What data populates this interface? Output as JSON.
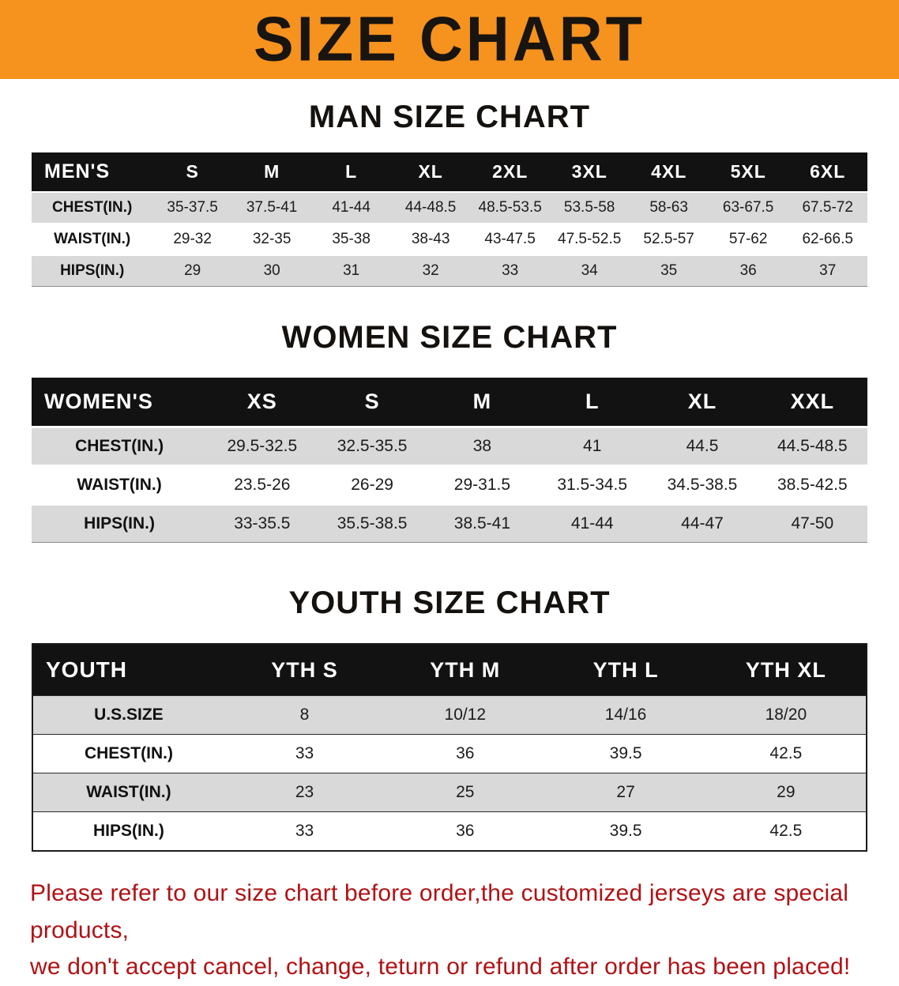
{
  "colors": {
    "banner_bg": "#f6921e",
    "header_bg": "#121212",
    "shade": "#d9d9d9",
    "footer_red": "#b01215"
  },
  "banner": {
    "title": "SIZE CHART"
  },
  "sections": [
    {
      "id": "men",
      "heading": "MAN SIZE CHART",
      "table": {
        "header": [
          "MEN'S",
          "S",
          "M",
          "L",
          "XL",
          "2XL",
          "3XL",
          "4XL",
          "5XL",
          "6XL"
        ],
        "rows": [
          {
            "label": "CHEST(IN.)",
            "values": [
              "35-37.5",
              "37.5-41",
              "41-44",
              "44-48.5",
              "48.5-53.5",
              "53.5-58",
              "58-63",
              "63-67.5",
              "67.5-72"
            ]
          },
          {
            "label": "WAIST(IN.)",
            "values": [
              "29-32",
              "32-35",
              "35-38",
              "38-43",
              "43-47.5",
              "47.5-52.5",
              "52.5-57",
              "57-62",
              "62-66.5"
            ]
          },
          {
            "label": "HIPS(IN.)",
            "values": [
              "29",
              "30",
              "31",
              "32",
              "33",
              "34",
              "35",
              "36",
              "37"
            ]
          }
        ]
      }
    },
    {
      "id": "women",
      "heading": "WOMEN SIZE CHART",
      "table": {
        "header": [
          "WOMEN'S",
          "XS",
          "S",
          "M",
          "L",
          "XL",
          "XXL"
        ],
        "rows": [
          {
            "label": "CHEST(IN.)",
            "values": [
              "29.5-32.5",
              "32.5-35.5",
              "38",
              "41",
              "44.5",
              "44.5-48.5"
            ]
          },
          {
            "label": "WAIST(IN.)",
            "values": [
              "23.5-26",
              "26-29",
              "29-31.5",
              "31.5-34.5",
              "34.5-38.5",
              "38.5-42.5"
            ]
          },
          {
            "label": "HIPS(IN.)",
            "values": [
              "33-35.5",
              "35.5-38.5",
              "38.5-41",
              "41-44",
              "44-47",
              "47-50"
            ]
          }
        ]
      }
    },
    {
      "id": "youth",
      "heading": "YOUTH SIZE CHART",
      "table": {
        "header": [
          "YOUTH",
          "YTH S",
          "YTH M",
          "YTH L",
          "YTH XL"
        ],
        "rows": [
          {
            "label": "U.S.SIZE",
            "values": [
              "8",
              "10/12",
              "14/16",
              "18/20"
            ]
          },
          {
            "label": "CHEST(IN.)",
            "values": [
              "33",
              "36",
              "39.5",
              "42.5"
            ]
          },
          {
            "label": "WAIST(IN.)",
            "values": [
              "23",
              "25",
              "27",
              "29"
            ]
          },
          {
            "label": "HIPS(IN.)",
            "values": [
              "33",
              "36",
              "39.5",
              "42.5"
            ]
          }
        ]
      }
    }
  ],
  "footer": {
    "lines": [
      "Please refer to our size chart before order,the customized jerseys are special products,",
      "we don't accept cancel, change, teturn or refund after order has been placed!"
    ]
  }
}
